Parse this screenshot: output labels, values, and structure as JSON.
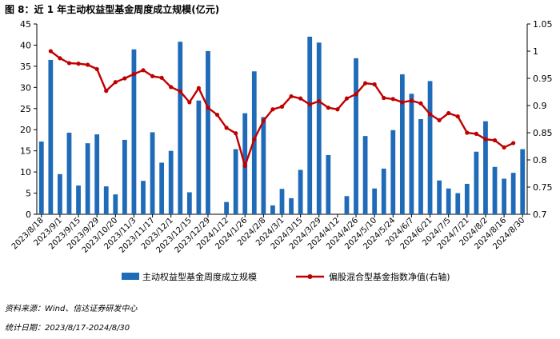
{
  "title": "图 8：近 1 年主动权益型基金周度成立规模(亿元)",
  "source": "资料来源：Wind、信达证券研发中心",
  "period": "统计日期：2023/8/17-2024/8/30",
  "chart_data": {
    "type": "bar+line",
    "x_tick_labels": [
      "2023/8/18",
      "2023/9/1",
      "2023/9/15",
      "2023/9/29",
      "2023/10/20",
      "2023/11/3",
      "2023/11/17",
      "2023/12/1",
      "2023/12/15",
      "2023/12/29",
      "2024/1/12",
      "2024/1/26",
      "2024/2/8",
      "2024/3/1",
      "2024/3/15",
      "2024/3/29",
      "2024/4/12",
      "2024/4/26",
      "2024/5/10",
      "2024/5/24",
      "2024/6/7",
      "2024/6/21",
      "2024/7/5",
      "2024/7/21",
      "2024/8/2",
      "2024/8/16",
      "2024/8/30"
    ],
    "y_left": {
      "lim": [
        0,
        45
      ],
      "ticks": [
        "0",
        "5",
        "10",
        "15",
        "20",
        "25",
        "30",
        "35",
        "40",
        "45"
      ]
    },
    "y_right": {
      "lim": [
        0.7,
        1.05
      ],
      "ticks": [
        "0.7",
        "0.75",
        "0.8",
        "0.85",
        "0.9",
        "0.95",
        "1",
        "1.05"
      ]
    },
    "series": [
      {
        "name": "主动权益型基金周度成立规模",
        "type": "bar",
        "axis": "left",
        "color": "#1f6bb8",
        "values": [
          17.2,
          36.5,
          9.5,
          19.3,
          6.8,
          16.8,
          18.9,
          6.6,
          4.7,
          17.6,
          39,
          7.9,
          19.4,
          12.2,
          15,
          40.8,
          5.2,
          26.9,
          38.6,
          0,
          2.9,
          15.4,
          23.9,
          33.8,
          23,
          2.1,
          6,
          3.8,
          10.5,
          42,
          40.6,
          14,
          0,
          4.3,
          36.9,
          18.5,
          6.1,
          10.8,
          19.9,
          33.1,
          28.5,
          22.5,
          31.5,
          8,
          6.1,
          5,
          7.2,
          14.8,
          22,
          11.2,
          8.4,
          9.8,
          15.4
        ]
      },
      {
        "name": "偏股混合型基金指数净值(右轴)",
        "type": "line",
        "axis": "right",
        "color": "#c00000",
        "values": [
          null,
          1.0,
          0.987,
          0.978,
          0.977,
          0.975,
          0.967,
          0.927,
          0.943,
          0.95,
          0.958,
          0.965,
          0.954,
          0.951,
          0.934,
          0.926,
          0.906,
          0.932,
          0.896,
          0.883,
          0.859,
          0.849,
          0.789,
          0.838,
          0.872,
          0.893,
          0.898,
          0.917,
          0.913,
          0.902,
          0.908,
          0.896,
          0.893,
          0.913,
          0.921,
          0.941,
          0.939,
          0.914,
          0.912,
          0.906,
          0.909,
          0.904,
          0.884,
          0.873,
          0.886,
          0.88,
          0.85,
          0.848,
          0.838,
          0.836,
          0.823,
          0.831,
          null
        ]
      }
    ],
    "legend_position": "bottom"
  }
}
